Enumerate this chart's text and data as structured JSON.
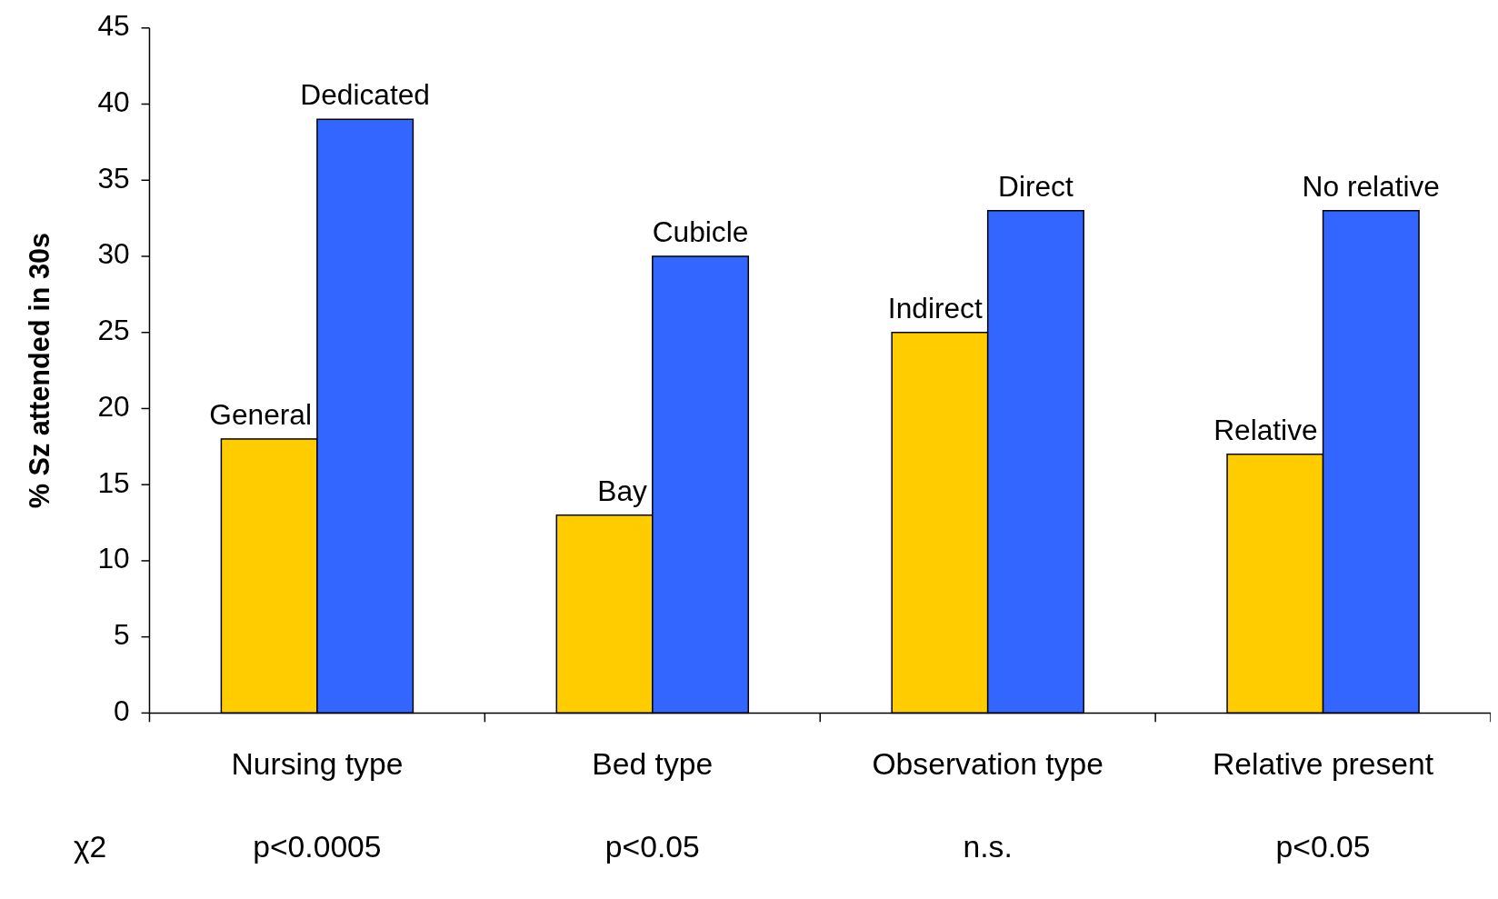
{
  "chart_data": {
    "type": "bar",
    "ylabel": "% Sz attended in 30s",
    "categories": [
      "Nursing type",
      "Bed type",
      "Observation type",
      "Relative present"
    ],
    "series": [
      {
        "color": "#ffcc00",
        "values": [
          18,
          13,
          25,
          17
        ]
      },
      {
        "color": "#3366ff",
        "values": [
          39,
          30,
          33,
          33
        ]
      }
    ],
    "ylim": [
      0,
      45
    ],
    "yticks": [
      0,
      5,
      10,
      15,
      20,
      25,
      30,
      35,
      40,
      45
    ],
    "grid": false,
    "annotations": [
      {
        "text": "General",
        "x": "Nursing type",
        "y": 18
      },
      {
        "text": "Dedicated",
        "x": "Nursing type",
        "y": 39
      },
      {
        "text": "Bay",
        "x": "Bed type",
        "y": 13
      },
      {
        "text": "Cubicle",
        "x": "Bed type",
        "y": 30
      },
      {
        "text": "Indirect",
        "x": "Observation type",
        "y": 25
      },
      {
        "text": "Direct",
        "x": "Observation type",
        "y": 33
      },
      {
        "text": "Relative",
        "x": "Relative present",
        "y": 17
      },
      {
        "text": "No relative",
        "x": "Relative present",
        "y": 33
      },
      "χ2",
      "p<0.0005",
      "p<0.05",
      "n.s.",
      "p<0.05"
    ]
  }
}
